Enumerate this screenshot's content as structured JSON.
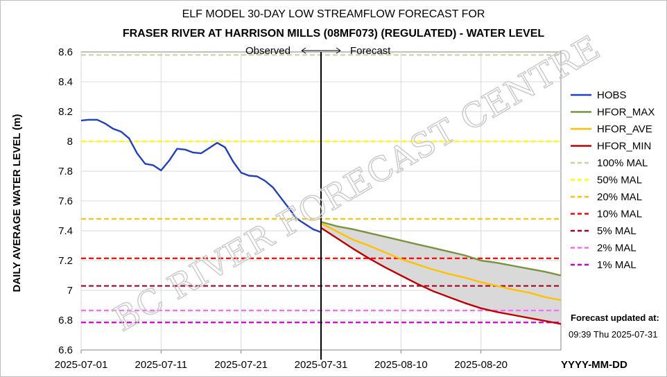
{
  "chart_data": {
    "type": "line",
    "title": "ELF MODEL 30-DAY LOW STREAMFLOW FORECAST FOR",
    "subtitle": "FRASER RIVER AT HARRISON MILLS (08MF073) (REGULATED)  - WATER LEVEL",
    "ylabel": "DAILY AVERAGE WATER LEVEL (m)",
    "xlabel": "YYYY-MM-DD",
    "x_ticks": [
      "2025-07-01",
      "2025-07-11",
      "2025-07-21",
      "2025-07-31",
      "2025-08-10",
      "2025-08-20"
    ],
    "y_ticks": [
      "6.6",
      "6.8",
      "7",
      "7.2",
      "7.4",
      "7.6",
      "7.8",
      "8",
      "8.2",
      "8.4",
      "8.6"
    ],
    "ylim": [
      6.6,
      8.6
    ],
    "x_start": "2025-07-01",
    "x_end": "2025-08-30",
    "grid": true,
    "legend_position": "right",
    "observed_label": "Observed",
    "forecast_label": "Forecast",
    "watermark": "BC RIVER FORECAST CENTRE",
    "forecast_updated_label": "Forecast updated at:",
    "forecast_updated_value": "09:39 Thu 2025-07-31",
    "forecast_start": "2025-07-31",
    "series": [
      {
        "name": "HOBS",
        "color": "#1f3fbf",
        "style": "solid",
        "x": [
          "2025-07-01",
          "2025-07-02",
          "2025-07-03",
          "2025-07-04",
          "2025-07-05",
          "2025-07-06",
          "2025-07-07",
          "2025-07-08",
          "2025-07-09",
          "2025-07-10",
          "2025-07-11",
          "2025-07-12",
          "2025-07-13",
          "2025-07-14",
          "2025-07-15",
          "2025-07-16",
          "2025-07-17",
          "2025-07-18",
          "2025-07-19",
          "2025-07-20",
          "2025-07-21",
          "2025-07-22",
          "2025-07-23",
          "2025-07-24",
          "2025-07-25",
          "2025-07-26",
          "2025-07-27",
          "2025-07-28",
          "2025-07-29",
          "2025-07-30",
          "2025-07-31"
        ],
        "y": [
          8.14,
          8.145,
          8.145,
          8.12,
          8.085,
          8.065,
          8.02,
          7.92,
          7.85,
          7.84,
          7.805,
          7.87,
          7.95,
          7.945,
          7.925,
          7.92,
          7.955,
          7.99,
          7.96,
          7.865,
          7.79,
          7.77,
          7.765,
          7.735,
          7.69,
          7.62,
          7.55,
          7.48,
          7.445,
          7.41,
          7.39
        ]
      },
      {
        "name": "HFOR_MAX",
        "color": "#77933c",
        "style": "solid",
        "x": [
          "2025-07-31",
          "2025-08-02",
          "2025-08-04",
          "2025-08-06",
          "2025-08-08",
          "2025-08-10",
          "2025-08-12",
          "2025-08-14",
          "2025-08-16",
          "2025-08-18",
          "2025-08-20",
          "2025-08-22",
          "2025-08-24",
          "2025-08-26",
          "2025-08-28",
          "2025-08-30"
        ],
        "y": [
          7.46,
          7.43,
          7.41,
          7.385,
          7.36,
          7.335,
          7.31,
          7.285,
          7.26,
          7.235,
          7.2,
          7.185,
          7.165,
          7.145,
          7.125,
          7.1
        ]
      },
      {
        "name": "HFOR_AVE",
        "color": "#ffc000",
        "style": "solid",
        "x": [
          "2025-07-31",
          "2025-08-02",
          "2025-08-04",
          "2025-08-06",
          "2025-08-08",
          "2025-08-10",
          "2025-08-12",
          "2025-08-14",
          "2025-08-16",
          "2025-08-18",
          "2025-08-20",
          "2025-08-22",
          "2025-08-24",
          "2025-08-26",
          "2025-08-28",
          "2025-08-30"
        ],
        "y": [
          7.45,
          7.395,
          7.34,
          7.3,
          7.255,
          7.21,
          7.175,
          7.14,
          7.11,
          7.085,
          7.055,
          7.03,
          7.005,
          6.985,
          6.955,
          6.935
        ]
      },
      {
        "name": "HFOR_MIN",
        "color": "#c00000",
        "style": "solid",
        "x": [
          "2025-07-31",
          "2025-08-02",
          "2025-08-04",
          "2025-08-06",
          "2025-08-08",
          "2025-08-10",
          "2025-08-12",
          "2025-08-14",
          "2025-08-16",
          "2025-08-18",
          "2025-08-20",
          "2025-08-22",
          "2025-08-24",
          "2025-08-26",
          "2025-08-28",
          "2025-08-30"
        ],
        "y": [
          7.42,
          7.35,
          7.28,
          7.215,
          7.155,
          7.1,
          7.045,
          6.995,
          6.955,
          6.915,
          6.88,
          6.855,
          6.835,
          6.815,
          6.795,
          6.775
        ]
      },
      {
        "name": "100% MAL",
        "color": "#c3d69b",
        "style": "dashed",
        "value": 8.58
      },
      {
        "name": "50% MAL",
        "color": "#ffff00",
        "style": "dashed",
        "value": 8.0
      },
      {
        "name": "20% MAL",
        "color": "#ffc000",
        "style": "dashed",
        "value": 7.48
      },
      {
        "name": "10% MAL",
        "color": "#ff0000",
        "style": "dashed",
        "value": 7.215
      },
      {
        "name": "5% MAL",
        "color": "#c0504d",
        "style": "dashed",
        "dark": "#a50021",
        "value": 7.03
      },
      {
        "name": "2% MAL",
        "color": "#ff66ff",
        "style": "dashed",
        "value": 6.865
      },
      {
        "name": "1% MAL",
        "color": "#cc00cc",
        "style": "dashed",
        "value": 6.785
      }
    ]
  }
}
